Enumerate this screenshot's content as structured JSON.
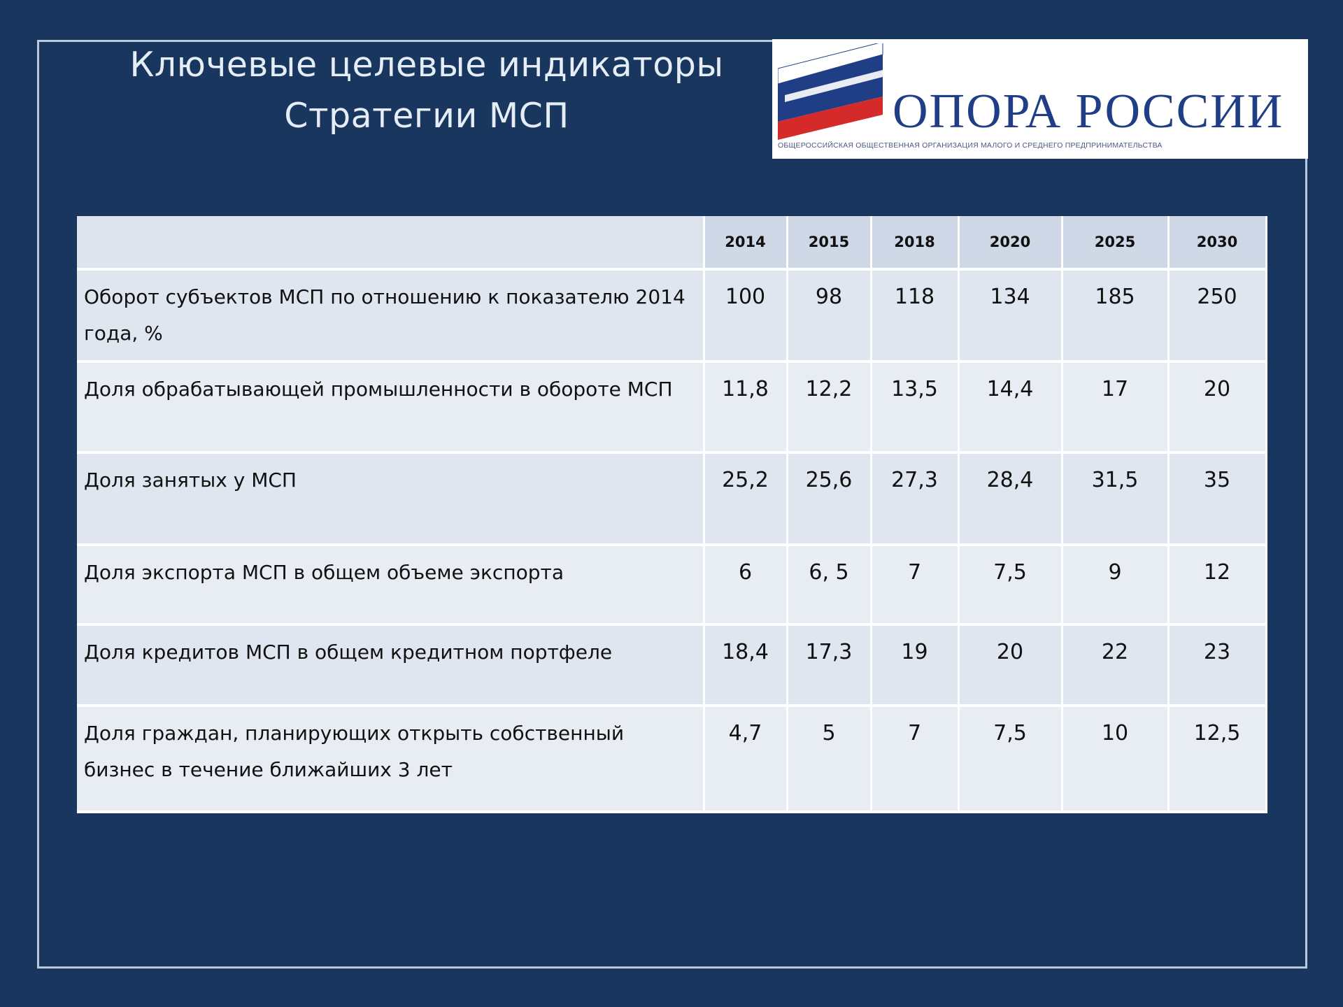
{
  "slide": {
    "title_line1": "Ключевые целевые индикаторы",
    "title_line2": "Стратегии МСП"
  },
  "logo": {
    "name": "ОПОРА РОССИИ",
    "subtitle": "Общероссийская общественная организация малого и среднего предпринимательства",
    "colors": [
      "#ffffff",
      "#1f3e86",
      "#d42a2a"
    ]
  },
  "table": {
    "columns": [
      "",
      "2014",
      "2015",
      "2018",
      "2020",
      "2025",
      "2030"
    ],
    "rows": [
      {
        "label": "Оборот субъектов  МСП по отношению к  показателю 2014 года, %",
        "values": [
          "100",
          "98",
          "118",
          "134",
          "185",
          "250"
        ]
      },
      {
        "label": "Доля обрабатывающей  промышленности в обороте МСП",
        "values": [
          "11,8",
          "12,2",
          "13,5",
          "14,4",
          "17",
          "20"
        ]
      },
      {
        "label": "Доля занятых  у МСП",
        "values": [
          "25,2",
          "25,6",
          "27,3",
          "28,4",
          "31,5",
          "35"
        ]
      },
      {
        "label": "Доля экспорта МСП в общем объеме  экспорта",
        "values": [
          "6",
          "6, 5",
          "7",
          "7,5",
          "9",
          "12"
        ]
      },
      {
        "label": "Доля кредитов  МСП в общем кредитном  портфеле",
        "values": [
          "18,4",
          "17,3",
          "19",
          "20",
          "22",
          "23"
        ]
      },
      {
        "label": "Доля граждан,  планирующих открыть  собственный бизнес в течение  ближайших 3 лет",
        "values": [
          "4,7",
          "5",
          "7",
          "7,5",
          "10",
          "12,5"
        ]
      }
    ]
  }
}
